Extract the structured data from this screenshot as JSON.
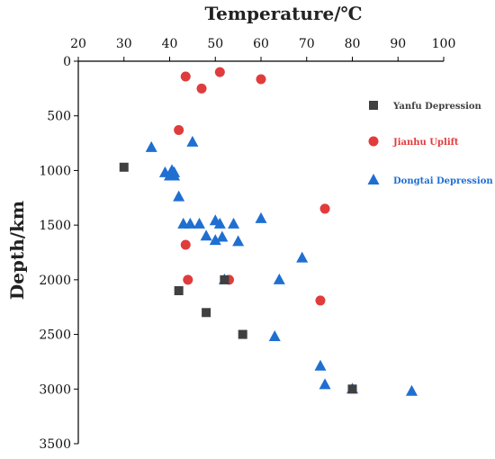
{
  "chart_data": {
    "type": "scatter",
    "xlabel": "Temperature/℃",
    "ylabel": "Depth/km",
    "xlim": [
      20,
      100
    ],
    "ylim": [
      0,
      3500
    ],
    "y_inverted": true,
    "x_axis_position": "top",
    "x_ticks": [
      20,
      30,
      40,
      50,
      60,
      70,
      80,
      90,
      100
    ],
    "y_ticks": [
      0,
      500,
      1000,
      1500,
      2000,
      2500,
      3000,
      3500
    ],
    "grid": false,
    "legend_position": "right",
    "series": [
      {
        "name": "Yanfu Depression",
        "marker": "square",
        "color": "#404040",
        "points": [
          [
            30,
            970
          ],
          [
            42,
            2100
          ],
          [
            48,
            2300
          ],
          [
            52,
            2000
          ],
          [
            56,
            2500
          ],
          [
            80,
            3000
          ]
        ]
      },
      {
        "name": "Jianhu Uplift",
        "marker": "circle",
        "color": "#e03c3c",
        "points": [
          [
            43.5,
            140
          ],
          [
            51,
            100
          ],
          [
            60,
            165
          ],
          [
            47,
            250
          ],
          [
            42,
            630
          ],
          [
            74,
            1350
          ],
          [
            43.5,
            1680
          ],
          [
            44,
            2000
          ],
          [
            53,
            2000
          ],
          [
            73,
            2190
          ]
        ]
      },
      {
        "name": "Dongtai Depression",
        "marker": "triangle",
        "color": "#1f6fd1",
        "points": [
          [
            36,
            790
          ],
          [
            45,
            740
          ],
          [
            39,
            1020
          ],
          [
            40.5,
            1000
          ],
          [
            41,
            1020
          ],
          [
            40,
            1050
          ],
          [
            41,
            1050
          ],
          [
            42,
            1240
          ],
          [
            43,
            1490
          ],
          [
            44.5,
            1490
          ],
          [
            46.5,
            1490
          ],
          [
            50,
            1460
          ],
          [
            51,
            1490
          ],
          [
            54,
            1490
          ],
          [
            60,
            1440
          ],
          [
            48,
            1600
          ],
          [
            50,
            1640
          ],
          [
            51.5,
            1610
          ],
          [
            55,
            1650
          ],
          [
            69,
            1800
          ],
          [
            52,
            2000
          ],
          [
            64,
            2000
          ],
          [
            63,
            2520
          ],
          [
            73,
            2790
          ],
          [
            74,
            2960
          ],
          [
            80,
            3000
          ],
          [
            93,
            3020
          ]
        ]
      }
    ]
  }
}
